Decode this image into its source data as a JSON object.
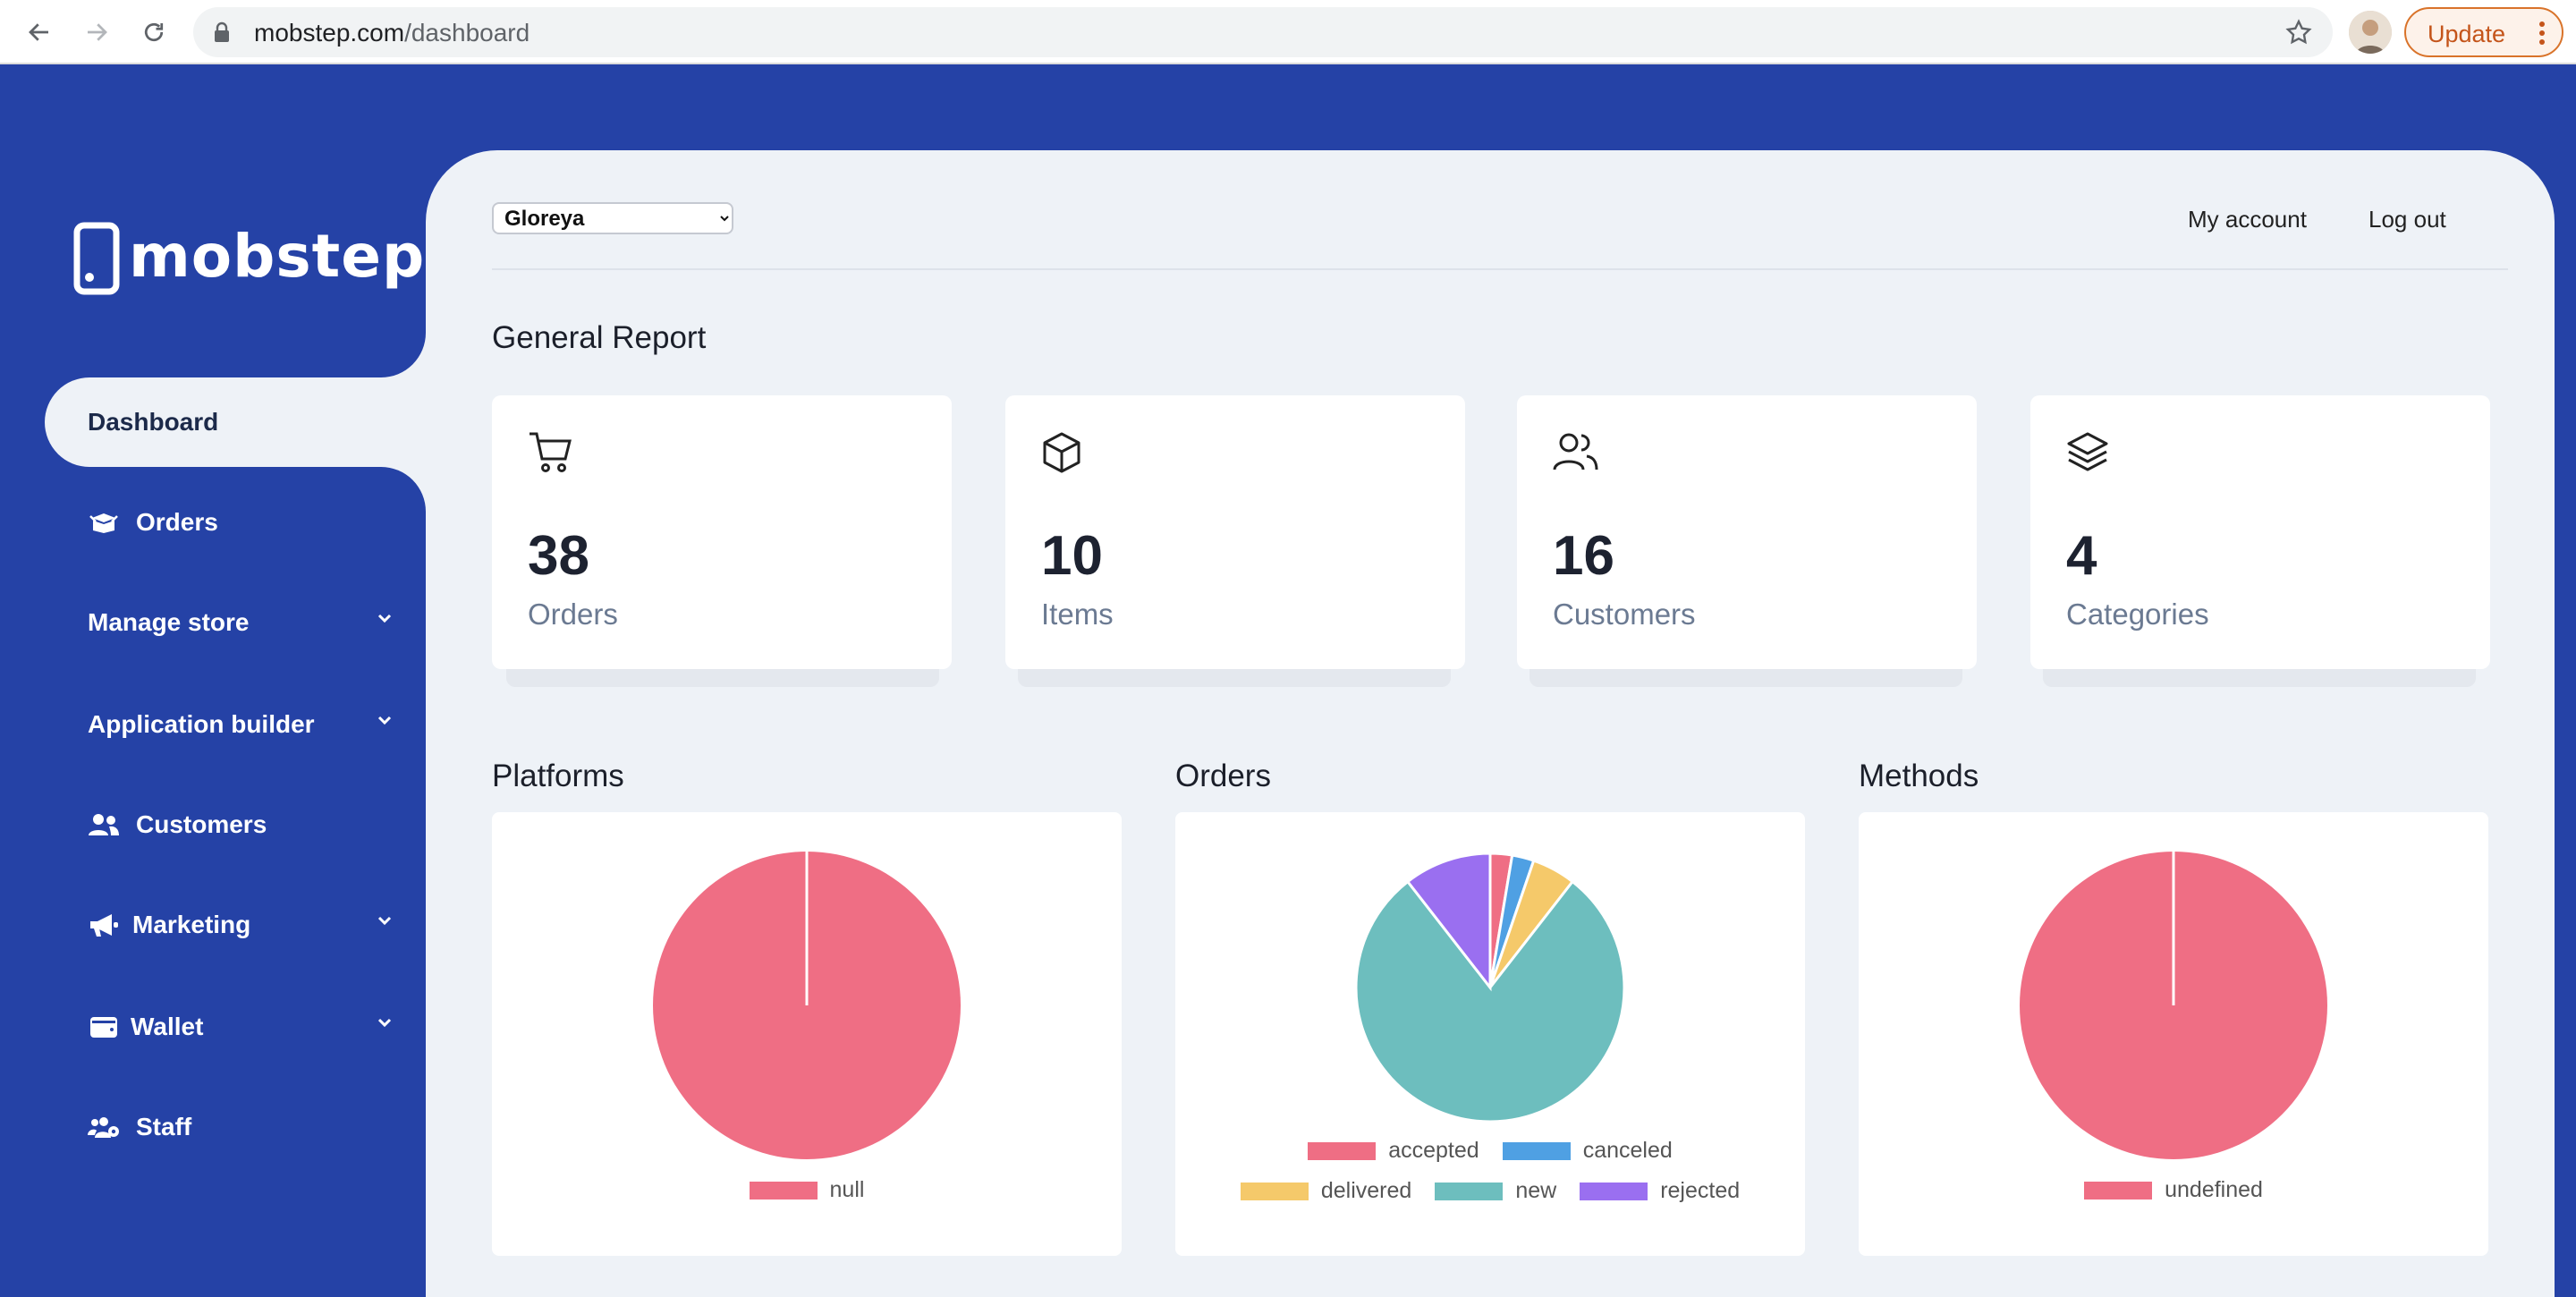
{
  "browser": {
    "url_domain": "mobstep.com",
    "url_path": "/dashboard",
    "update_label": "Update"
  },
  "brand": {
    "name": "mobstep"
  },
  "sidebar": {
    "items": [
      {
        "label": "Dashboard",
        "icon": "none",
        "active": true
      },
      {
        "label": "Orders",
        "icon": "box-open-icon"
      },
      {
        "label": "Manage store",
        "icon": "none",
        "expandable": true
      },
      {
        "label": "Application builder",
        "icon": "none",
        "expandable": true
      },
      {
        "label": "Customers",
        "icon": "users-icon"
      },
      {
        "label": "Marketing",
        "icon": "megaphone-icon",
        "expandable": true
      },
      {
        "label": "Wallet",
        "icon": "wallet-icon",
        "expandable": true
      },
      {
        "label": "Staff",
        "icon": "users-cog-icon"
      }
    ]
  },
  "header": {
    "store_selected": "Gloreya",
    "my_account": "My account",
    "log_out": "Log out"
  },
  "report": {
    "title": "General Report",
    "stats": [
      {
        "value": "38",
        "label": "Orders",
        "icon": "cart-icon"
      },
      {
        "value": "10",
        "label": "Items",
        "icon": "cube-icon"
      },
      {
        "value": "16",
        "label": "Customers",
        "icon": "users-icon"
      },
      {
        "value": "4",
        "label": "Categories",
        "icon": "layers-icon"
      }
    ]
  },
  "charts": {
    "platforms_title": "Platforms",
    "orders_title": "Orders",
    "methods_title": "Methods"
  },
  "chart_data": [
    {
      "type": "pie",
      "title": "Platforms",
      "categories": [
        "null"
      ],
      "values": [
        100
      ],
      "colors": [
        "#ef6e84"
      ],
      "legend": "bottom"
    },
    {
      "type": "pie",
      "title": "Orders",
      "categories": [
        "accepted",
        "canceled",
        "delivered",
        "new",
        "rejected"
      ],
      "values": [
        1,
        1,
        2,
        30,
        4
      ],
      "colors": [
        "#ef6e84",
        "#4fa0e3",
        "#f5c96a",
        "#6dbebe",
        "#9a6ff0"
      ],
      "legend": "bottom"
    },
    {
      "type": "pie",
      "title": "Methods",
      "categories": [
        "undefined"
      ],
      "values": [
        100
      ],
      "colors": [
        "#ef6e84"
      ],
      "legend": "bottom"
    }
  ],
  "colors": {
    "sidebar_bg": "#2542a6",
    "main_bg": "#eef2f7",
    "accent_update": "#d9732a"
  }
}
